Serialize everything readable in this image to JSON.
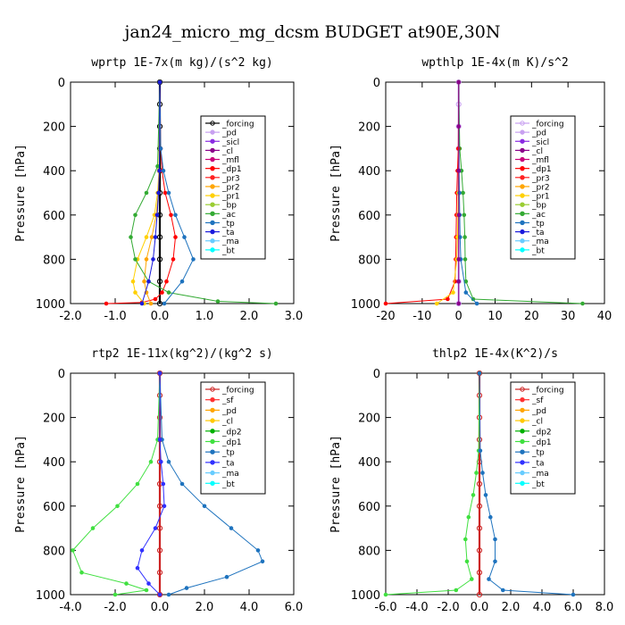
{
  "figure_title": "jan24_micro_mg_dcsm  BUDGET at90E,30N",
  "colors": {
    "forcing": "#000000",
    "pd": "#c8a0f0",
    "sicl": "#8a2be2",
    "cl": "#8b008b",
    "mfl": "#c8007a",
    "dp1": "#ff0000",
    "pr3": "#ff2222",
    "pr2": "#ffa500",
    "pr1": "#ffd000",
    "bp": "#9acd32",
    "ac": "#33aa33",
    "tp": "#1e73be",
    "ta": "#1a1adc",
    "ma": "#66ccff",
    "bt": "#00ffff",
    "sf": "#ff3030",
    "cl_rtp2": "#ffc800",
    "dp2": "#00b000",
    "dp1_rtp2": "#40e040",
    "ta_rtp2": "#3030ff",
    "bold_forcing": "#cc2222"
  },
  "chart_data": [
    {
      "type": "line",
      "title": "wprtp   1E-7x(m kg)/(s^2 kg)",
      "ylabel": "Pressure [hPa]",
      "xlim": [
        -2.0,
        3.0
      ],
      "xticks": [
        -2.0,
        -1.0,
        0.0,
        1.0,
        2.0,
        3.0
      ],
      "xticklabels": [
        "-2.0",
        "-1.0",
        "0.0",
        "1.0",
        "2.0",
        "3.0"
      ],
      "ylim": [
        1000,
        0
      ],
      "yticks": [
        0,
        200,
        400,
        600,
        800,
        1000
      ],
      "yticklabels": [
        "0",
        "200",
        "400",
        "600",
        "800",
        "1000"
      ],
      "legend": [
        "_forcing",
        "_pd",
        "_sicl",
        "_cl",
        "_mfl",
        "_dp1",
        "_pr3",
        "_pr2",
        "_pr1",
        "_bp",
        "_ac",
        "_tp",
        "_ta",
        "_ma",
        "_bt"
      ],
      "legend_colors": [
        "#000000",
        "#c8a0f0",
        "#8a2be2",
        "#8b008b",
        "#c8007a",
        "#ff0000",
        "#ff2222",
        "#ffa500",
        "#ffd000",
        "#9acd32",
        "#33aa33",
        "#1e73be",
        "#1a1adc",
        "#66ccff",
        "#00ffff"
      ],
      "series": [
        {
          "name": "_forcing",
          "color": "#000000",
          "x": [
            0,
            0,
            0,
            0,
            0,
            0,
            0,
            0,
            0,
            0,
            0
          ],
          "y": [
            0,
            100,
            200,
            300,
            400,
            500,
            600,
            700,
            800,
            900,
            1000
          ]
        },
        {
          "name": "_dp1",
          "color": "#ff0000",
          "x": [
            0,
            0.02,
            0.05,
            0.12,
            0.25,
            0.35,
            0.3,
            0.15,
            0.05,
            -0.1,
            -0.4,
            -1.2
          ],
          "y": [
            0,
            300,
            400,
            500,
            600,
            700,
            800,
            900,
            950,
            980,
            995,
            1000
          ]
        },
        {
          "name": "_pr1",
          "color": "#ffd000",
          "x": [
            0,
            -0.02,
            -0.05,
            -0.12,
            -0.3,
            -0.5,
            -0.6,
            -0.55,
            -0.35
          ],
          "y": [
            0,
            400,
            500,
            600,
            700,
            800,
            900,
            950,
            1000
          ]
        },
        {
          "name": "_pr2",
          "color": "#ffa500",
          "x": [
            0,
            -0.01,
            -0.03,
            -0.08,
            -0.18,
            -0.3,
            -0.35,
            -0.3,
            -0.2
          ],
          "y": [
            0,
            400,
            500,
            600,
            700,
            800,
            900,
            950,
            1000
          ]
        },
        {
          "name": "_ac",
          "color": "#33aa33",
          "x": [
            0,
            -0.05,
            -0.3,
            -0.55,
            -0.65,
            -0.55,
            -0.25,
            0.2,
            1.3,
            2.6
          ],
          "y": [
            0,
            380,
            500,
            600,
            700,
            800,
            900,
            950,
            990,
            1000
          ]
        },
        {
          "name": "_tp",
          "color": "#1e73be",
          "x": [
            0,
            0.02,
            0.08,
            0.2,
            0.35,
            0.55,
            0.75,
            0.5,
            0.1
          ],
          "y": [
            0,
            300,
            400,
            500,
            600,
            700,
            800,
            900,
            1000
          ]
        },
        {
          "name": "_ta",
          "color": "#1a1adc",
          "x": [
            0,
            -0.01,
            -0.03,
            -0.06,
            -0.1,
            -0.15,
            -0.25,
            -0.4
          ],
          "y": [
            0,
            400,
            500,
            600,
            700,
            800,
            900,
            1000
          ]
        }
      ]
    },
    {
      "type": "line",
      "title": "wpthlp   1E-4x(m K)/s^2",
      "ylabel": "Pressure [hPa]",
      "xlim": [
        -20,
        40
      ],
      "xticks": [
        -20,
        -10,
        0,
        10,
        20,
        30,
        40
      ],
      "xticklabels": [
        "-20",
        "-10",
        "0",
        "10",
        "20",
        "30",
        "40"
      ],
      "ylim": [
        1000,
        0
      ],
      "yticks": [
        0,
        200,
        400,
        600,
        800,
        1000
      ],
      "yticklabels": [
        "0",
        "200",
        "400",
        "600",
        "800",
        "1000"
      ],
      "legend": [
        "_forcing",
        "_pd",
        "_sicl",
        "_cl",
        "_mfl",
        "_dp1",
        "_pr3",
        "_pr2",
        "_pr1",
        "_bp",
        "_ac",
        "_tp",
        "_ta",
        "_ma",
        "_bt"
      ],
      "legend_colors": [
        "#c8a0f0",
        "#c8a0f0",
        "#8a2be2",
        "#8b008b",
        "#c8007a",
        "#ff0000",
        "#ff2222",
        "#ffa500",
        "#ffd000",
        "#9acd32",
        "#33aa33",
        "#1e73be",
        "#1a1adc",
        "#66ccff",
        "#00ffff"
      ],
      "series": [
        {
          "name": "_forcing",
          "color": "#c8a0f0",
          "x": [
            0,
            0,
            0,
            0,
            0,
            0,
            0,
            0,
            0,
            0,
            0
          ],
          "y": [
            0,
            100,
            200,
            300,
            400,
            500,
            600,
            700,
            800,
            900,
            1000
          ]
        },
        {
          "name": "_ac",
          "color": "#33aa33",
          "x": [
            0,
            0.3,
            0.8,
            1.2,
            1.5,
            1.7,
            1.8,
            2.0,
            4,
            34
          ],
          "y": [
            0,
            300,
            400,
            500,
            600,
            700,
            800,
            900,
            980,
            1000
          ]
        },
        {
          "name": "_dp1",
          "color": "#ff0000",
          "x": [
            0,
            -0.1,
            -0.3,
            -0.5,
            -0.6,
            -0.7,
            -0.8,
            -1,
            -3,
            -20
          ],
          "y": [
            0,
            300,
            400,
            500,
            600,
            700,
            800,
            900,
            980,
            1000
          ]
        },
        {
          "name": "_pr1",
          "color": "#ffd000",
          "x": [
            0,
            0,
            -0.1,
            -0.2,
            -0.3,
            -0.5,
            -1.5,
            -6
          ],
          "y": [
            0,
            400,
            500,
            600,
            700,
            800,
            950,
            1000
          ]
        },
        {
          "name": "_tp",
          "color": "#1e73be",
          "x": [
            0,
            0.1,
            0.2,
            0.3,
            0.4,
            0.6,
            2,
            5
          ],
          "y": [
            0,
            400,
            500,
            600,
            700,
            800,
            950,
            1000
          ]
        },
        {
          "name": "_cl",
          "color": "#8b008b",
          "x": [
            0,
            0,
            0,
            0,
            0,
            0,
            0
          ],
          "y": [
            0,
            200,
            400,
            600,
            800,
            900,
            1000
          ]
        }
      ]
    },
    {
      "type": "line",
      "title": "rtp2   1E-11x(kg^2)/(kg^2 s)",
      "ylabel": "Pressure [hPa]",
      "xlim": [
        -4.0,
        6.0
      ],
      "xticks": [
        -4.0,
        -2.0,
        0.0,
        2.0,
        4.0,
        6.0
      ],
      "xticklabels": [
        "-4.0",
        "-2.0",
        "0.0",
        "2.0",
        "4.0",
        "6.0"
      ],
      "ylim": [
        1000,
        0
      ],
      "yticks": [
        0,
        200,
        400,
        600,
        800,
        1000
      ],
      "yticklabels": [
        "0",
        "200",
        "400",
        "600",
        "800",
        "1000"
      ],
      "legend": [
        "_forcing",
        "_sf",
        "_pd",
        "_cl",
        "_dp2",
        "_dp1",
        "_tp",
        "_ta",
        "_ma",
        "_bt"
      ],
      "legend_colors": [
        "#cc2222",
        "#ff3030",
        "#ffa500",
        "#ffc800",
        "#00b000",
        "#40e040",
        "#1e73be",
        "#3030ff",
        "#66ccff",
        "#00ffff"
      ],
      "series": [
        {
          "name": "_forcing",
          "color": "#cc2222",
          "x": [
            0,
            0,
            0,
            0,
            0,
            0,
            0,
            0,
            0,
            0,
            0
          ],
          "y": [
            0,
            100,
            200,
            300,
            400,
            500,
            600,
            700,
            800,
            900,
            1000
          ]
        },
        {
          "name": "_dp1",
          "color": "#40e040",
          "x": [
            0,
            -0.1,
            -0.4,
            -1.0,
            -1.9,
            -3.0,
            -3.9,
            -3.5,
            -1.5,
            -0.6,
            -2.0
          ],
          "y": [
            0,
            300,
            400,
            500,
            600,
            700,
            800,
            900,
            950,
            980,
            1000
          ]
        },
        {
          "name": "_tp",
          "color": "#1e73be",
          "x": [
            0,
            0.1,
            0.4,
            1.0,
            2.0,
            3.2,
            4.4,
            4.6,
            3.0,
            1.2,
            0.4
          ],
          "y": [
            0,
            300,
            400,
            500,
            600,
            700,
            800,
            850,
            920,
            970,
            1000
          ]
        },
        {
          "name": "_ta",
          "color": "#3030ff",
          "x": [
            0,
            0,
            0.05,
            0.15,
            0.2,
            -0.2,
            -0.8,
            -1.0,
            -0.5,
            0
          ],
          "y": [
            0,
            300,
            400,
            500,
            600,
            700,
            800,
            880,
            950,
            1000
          ]
        }
      ]
    },
    {
      "type": "line",
      "title": "thlp2   1E-4x(K^2)/s",
      "ylabel": "Pressure [hPa]",
      "xlim": [
        -6.0,
        8.0
      ],
      "xticks": [
        -6.0,
        -4.0,
        -2.0,
        0.0,
        2.0,
        4.0,
        6.0,
        8.0
      ],
      "xticklabels": [
        "-6.0",
        "-4.0",
        "-2.0",
        "0.0",
        "2.0",
        "4.0",
        "6.0",
        "8.0"
      ],
      "ylim": [
        1000,
        0
      ],
      "yticks": [
        0,
        200,
        400,
        600,
        800,
        1000
      ],
      "yticklabels": [
        "0",
        "200",
        "400",
        "600",
        "800",
        "1000"
      ],
      "legend": [
        "_forcing",
        "_sf",
        "_pd",
        "_cl",
        "_dp2",
        "_dp1",
        "_tp",
        "_ta",
        "_ma",
        "_bt"
      ],
      "legend_colors": [
        "#cc2222",
        "#ff3030",
        "#ffa500",
        "#ffc800",
        "#00b000",
        "#40e040",
        "#1e73be",
        "#3030ff",
        "#66ccff",
        "#00ffff"
      ],
      "series": [
        {
          "name": "_forcing",
          "color": "#cc2222",
          "x": [
            0,
            0,
            0,
            0,
            0,
            0,
            0,
            0,
            0,
            0,
            0
          ],
          "y": [
            0,
            100,
            200,
            300,
            400,
            500,
            600,
            700,
            800,
            900,
            1000
          ]
        },
        {
          "name": "_dp1",
          "color": "#40e040",
          "x": [
            0,
            -0.05,
            -0.2,
            -0.4,
            -0.7,
            -0.9,
            -0.8,
            -0.5,
            -1.5,
            -6.0
          ],
          "y": [
            0,
            350,
            450,
            550,
            650,
            750,
            850,
            930,
            980,
            1000
          ]
        },
        {
          "name": "_tp",
          "color": "#1e73be",
          "x": [
            0,
            0.05,
            0.2,
            0.4,
            0.7,
            1.0,
            1.0,
            0.6,
            1.5,
            6.0
          ],
          "y": [
            0,
            350,
            450,
            550,
            650,
            750,
            850,
            930,
            980,
            1000
          ]
        }
      ]
    }
  ]
}
